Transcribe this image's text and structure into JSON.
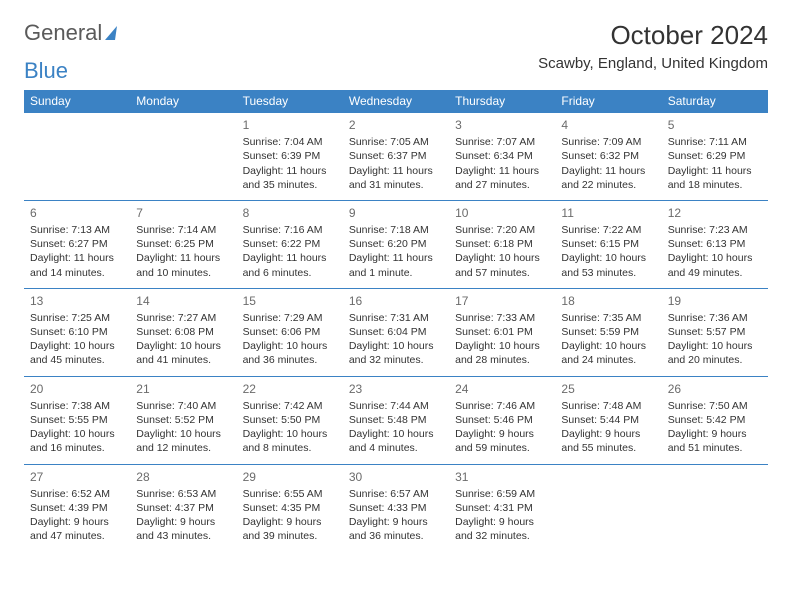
{
  "brand": {
    "part1": "General",
    "part2": "Blue"
  },
  "title": "October 2024",
  "location": "Scawby, England, United Kingdom",
  "colors": {
    "accent": "#3b82c4",
    "text": "#333333",
    "day_num": "#6b6b6b",
    "background": "#ffffff"
  },
  "day_headers": [
    "Sunday",
    "Monday",
    "Tuesday",
    "Wednesday",
    "Thursday",
    "Friday",
    "Saturday"
  ],
  "weeks": [
    [
      {
        "day": "",
        "sunrise": "",
        "sunset": "",
        "daylight": ""
      },
      {
        "day": "",
        "sunrise": "",
        "sunset": "",
        "daylight": ""
      },
      {
        "day": "1",
        "sunrise": "Sunrise: 7:04 AM",
        "sunset": "Sunset: 6:39 PM",
        "daylight": "Daylight: 11 hours and 35 minutes."
      },
      {
        "day": "2",
        "sunrise": "Sunrise: 7:05 AM",
        "sunset": "Sunset: 6:37 PM",
        "daylight": "Daylight: 11 hours and 31 minutes."
      },
      {
        "day": "3",
        "sunrise": "Sunrise: 7:07 AM",
        "sunset": "Sunset: 6:34 PM",
        "daylight": "Daylight: 11 hours and 27 minutes."
      },
      {
        "day": "4",
        "sunrise": "Sunrise: 7:09 AM",
        "sunset": "Sunset: 6:32 PM",
        "daylight": "Daylight: 11 hours and 22 minutes."
      },
      {
        "day": "5",
        "sunrise": "Sunrise: 7:11 AM",
        "sunset": "Sunset: 6:29 PM",
        "daylight": "Daylight: 11 hours and 18 minutes."
      }
    ],
    [
      {
        "day": "6",
        "sunrise": "Sunrise: 7:13 AM",
        "sunset": "Sunset: 6:27 PM",
        "daylight": "Daylight: 11 hours and 14 minutes."
      },
      {
        "day": "7",
        "sunrise": "Sunrise: 7:14 AM",
        "sunset": "Sunset: 6:25 PM",
        "daylight": "Daylight: 11 hours and 10 minutes."
      },
      {
        "day": "8",
        "sunrise": "Sunrise: 7:16 AM",
        "sunset": "Sunset: 6:22 PM",
        "daylight": "Daylight: 11 hours and 6 minutes."
      },
      {
        "day": "9",
        "sunrise": "Sunrise: 7:18 AM",
        "sunset": "Sunset: 6:20 PM",
        "daylight": "Daylight: 11 hours and 1 minute."
      },
      {
        "day": "10",
        "sunrise": "Sunrise: 7:20 AM",
        "sunset": "Sunset: 6:18 PM",
        "daylight": "Daylight: 10 hours and 57 minutes."
      },
      {
        "day": "11",
        "sunrise": "Sunrise: 7:22 AM",
        "sunset": "Sunset: 6:15 PM",
        "daylight": "Daylight: 10 hours and 53 minutes."
      },
      {
        "day": "12",
        "sunrise": "Sunrise: 7:23 AM",
        "sunset": "Sunset: 6:13 PM",
        "daylight": "Daylight: 10 hours and 49 minutes."
      }
    ],
    [
      {
        "day": "13",
        "sunrise": "Sunrise: 7:25 AM",
        "sunset": "Sunset: 6:10 PM",
        "daylight": "Daylight: 10 hours and 45 minutes."
      },
      {
        "day": "14",
        "sunrise": "Sunrise: 7:27 AM",
        "sunset": "Sunset: 6:08 PM",
        "daylight": "Daylight: 10 hours and 41 minutes."
      },
      {
        "day": "15",
        "sunrise": "Sunrise: 7:29 AM",
        "sunset": "Sunset: 6:06 PM",
        "daylight": "Daylight: 10 hours and 36 minutes."
      },
      {
        "day": "16",
        "sunrise": "Sunrise: 7:31 AM",
        "sunset": "Sunset: 6:04 PM",
        "daylight": "Daylight: 10 hours and 32 minutes."
      },
      {
        "day": "17",
        "sunrise": "Sunrise: 7:33 AM",
        "sunset": "Sunset: 6:01 PM",
        "daylight": "Daylight: 10 hours and 28 minutes."
      },
      {
        "day": "18",
        "sunrise": "Sunrise: 7:35 AM",
        "sunset": "Sunset: 5:59 PM",
        "daylight": "Daylight: 10 hours and 24 minutes."
      },
      {
        "day": "19",
        "sunrise": "Sunrise: 7:36 AM",
        "sunset": "Sunset: 5:57 PM",
        "daylight": "Daylight: 10 hours and 20 minutes."
      }
    ],
    [
      {
        "day": "20",
        "sunrise": "Sunrise: 7:38 AM",
        "sunset": "Sunset: 5:55 PM",
        "daylight": "Daylight: 10 hours and 16 minutes."
      },
      {
        "day": "21",
        "sunrise": "Sunrise: 7:40 AM",
        "sunset": "Sunset: 5:52 PM",
        "daylight": "Daylight: 10 hours and 12 minutes."
      },
      {
        "day": "22",
        "sunrise": "Sunrise: 7:42 AM",
        "sunset": "Sunset: 5:50 PM",
        "daylight": "Daylight: 10 hours and 8 minutes."
      },
      {
        "day": "23",
        "sunrise": "Sunrise: 7:44 AM",
        "sunset": "Sunset: 5:48 PM",
        "daylight": "Daylight: 10 hours and 4 minutes."
      },
      {
        "day": "24",
        "sunrise": "Sunrise: 7:46 AM",
        "sunset": "Sunset: 5:46 PM",
        "daylight": "Daylight: 9 hours and 59 minutes."
      },
      {
        "day": "25",
        "sunrise": "Sunrise: 7:48 AM",
        "sunset": "Sunset: 5:44 PM",
        "daylight": "Daylight: 9 hours and 55 minutes."
      },
      {
        "day": "26",
        "sunrise": "Sunrise: 7:50 AM",
        "sunset": "Sunset: 5:42 PM",
        "daylight": "Daylight: 9 hours and 51 minutes."
      }
    ],
    [
      {
        "day": "27",
        "sunrise": "Sunrise: 6:52 AM",
        "sunset": "Sunset: 4:39 PM",
        "daylight": "Daylight: 9 hours and 47 minutes."
      },
      {
        "day": "28",
        "sunrise": "Sunrise: 6:53 AM",
        "sunset": "Sunset: 4:37 PM",
        "daylight": "Daylight: 9 hours and 43 minutes."
      },
      {
        "day": "29",
        "sunrise": "Sunrise: 6:55 AM",
        "sunset": "Sunset: 4:35 PM",
        "daylight": "Daylight: 9 hours and 39 minutes."
      },
      {
        "day": "30",
        "sunrise": "Sunrise: 6:57 AM",
        "sunset": "Sunset: 4:33 PM",
        "daylight": "Daylight: 9 hours and 36 minutes."
      },
      {
        "day": "31",
        "sunrise": "Sunrise: 6:59 AM",
        "sunset": "Sunset: 4:31 PM",
        "daylight": "Daylight: 9 hours and 32 minutes."
      },
      {
        "day": "",
        "sunrise": "",
        "sunset": "",
        "daylight": ""
      },
      {
        "day": "",
        "sunrise": "",
        "sunset": "",
        "daylight": ""
      }
    ]
  ]
}
